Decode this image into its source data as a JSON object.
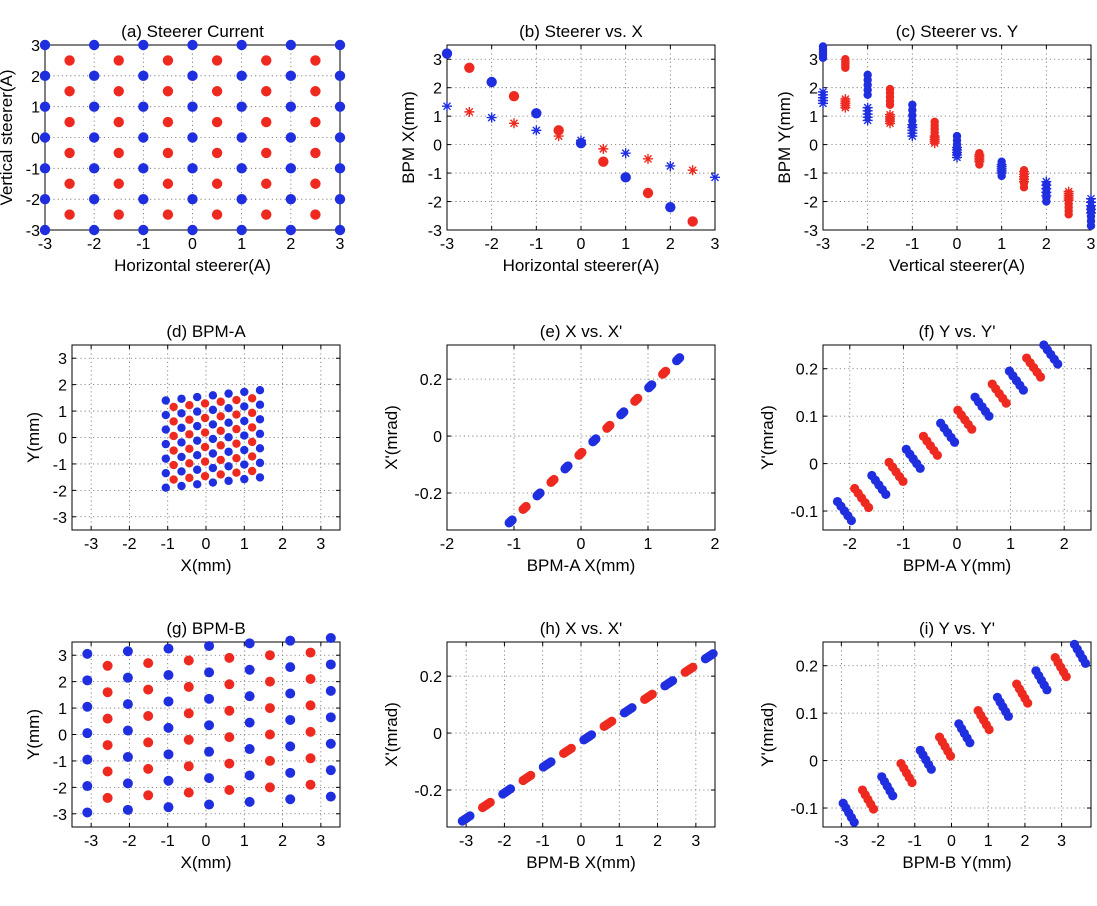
{
  "colors": {
    "red": "#ee2a20",
    "blue": "#1f2fe0"
  },
  "chart_data": [
    {
      "panel": "a",
      "type": "scatter",
      "title": "(a) Steerer Current",
      "xlabel": "Horizontal steerer(A)",
      "ylabel": "Vertical steerer(A)",
      "xlim": [
        -3,
        3
      ],
      "ylim": [
        -3,
        3
      ],
      "xticks": [
        -3,
        -2,
        -1,
        0,
        1,
        2,
        3
      ],
      "yticks": [
        -3,
        -2,
        -1,
        0,
        1,
        2,
        3
      ],
      "series": [
        {
          "color": "red",
          "marker": "dot",
          "grid": {
            "x": [
              -2.5,
              -1.5,
              -0.5,
              0.5,
              1.5,
              2.5
            ],
            "y": [
              -2.5,
              -1.5,
              -0.5,
              0.5,
              1.5,
              2.5
            ]
          }
        },
        {
          "color": "blue",
          "marker": "dot",
          "grid": {
            "x": [
              -3,
              -2,
              -1,
              0,
              1,
              2,
              3
            ],
            "y": [
              -3,
              -2,
              -1,
              0,
              1,
              2,
              3
            ]
          }
        }
      ]
    },
    {
      "panel": "b",
      "type": "scatter",
      "title": "(b) Steerer vs. X",
      "xlabel": "Horizontal steerer(A)",
      "ylabel": "BPM X(mm)",
      "xlim": [
        -3,
        3
      ],
      "ylim": [
        -3,
        3.5
      ],
      "xticks": [
        -3,
        -2,
        -1,
        0,
        1,
        2,
        3
      ],
      "yticks": [
        -3,
        -2,
        -1,
        0,
        1,
        2,
        3
      ],
      "series": [
        {
          "color": "blue",
          "marker": "dot",
          "x": [
            -3,
            -2,
            -1,
            0,
            1,
            2
          ],
          "y": [
            3.2,
            2.2,
            1.1,
            0.05,
            -1.15,
            -2.2
          ]
        },
        {
          "color": "red",
          "marker": "dot",
          "x": [
            -2.5,
            -1.5,
            -0.5,
            0.5,
            1.5,
            2.5
          ],
          "y": [
            2.7,
            1.7,
            0.5,
            -0.6,
            -1.7,
            -2.7
          ]
        },
        {
          "color": "blue",
          "marker": "star",
          "x": [
            -3,
            -2,
            -1,
            0,
            1,
            2,
            3
          ],
          "y": [
            1.35,
            0.95,
            0.5,
            0.15,
            -0.3,
            -0.75,
            -1.15
          ]
        },
        {
          "color": "red",
          "marker": "star",
          "x": [
            -2.5,
            -1.5,
            -0.5,
            0.5,
            1.5,
            2.5
          ],
          "y": [
            1.15,
            0.75,
            0.3,
            -0.15,
            -0.5,
            -0.9
          ]
        }
      ]
    },
    {
      "panel": "c",
      "type": "scatter",
      "title": "(c) Steerer vs. Y",
      "xlabel": "Vertical steerer(A)",
      "ylabel": "BPM Y(mm)",
      "xlim": [
        -3,
        3
      ],
      "ylim": [
        -3,
        3.5
      ],
      "xticks": [
        -3,
        -2,
        -1,
        0,
        1,
        2,
        3
      ],
      "yticks": [
        -3,
        -2,
        -1,
        0,
        1,
        2,
        3
      ],
      "columns": [
        {
          "x": -3,
          "color": "blue",
          "dot": [
            3.05,
            3.45
          ],
          "star": [
            1.45,
            1.85
          ]
        },
        {
          "x": -2.5,
          "color": "red",
          "dot": [
            2.7,
            3.0
          ],
          "star": [
            1.3,
            1.6
          ]
        },
        {
          "x": -2,
          "color": "blue",
          "dot": [
            1.75,
            2.45
          ],
          "star": [
            0.85,
            1.3
          ]
        },
        {
          "x": -1.5,
          "color": "red",
          "dot": [
            1.4,
            1.95
          ],
          "star": [
            0.75,
            1.05
          ]
        },
        {
          "x": -1,
          "color": "blue",
          "dot": [
            0.65,
            1.4
          ],
          "star": [
            0.3,
            0.7
          ]
        },
        {
          "x": -0.5,
          "color": "red",
          "dot": [
            0.3,
            0.8
          ],
          "star": [
            0.05,
            0.3
          ]
        },
        {
          "x": 0,
          "color": "blue",
          "dot": [
            -0.3,
            0.3
          ],
          "star": [
            -0.45,
            -0.1
          ]
        },
        {
          "x": 0.5,
          "color": "red",
          "dot": [
            -0.7,
            -0.3
          ],
          "star": [
            -0.6,
            -0.35
          ]
        },
        {
          "x": 1,
          "color": "blue",
          "dot": [
            -1.1,
            -0.6
          ],
          "star": [
            -1.0,
            -0.7
          ]
        },
        {
          "x": 1.5,
          "color": "red",
          "dot": [
            -1.5,
            -0.9
          ],
          "star": [
            -1.3,
            -0.95
          ]
        },
        {
          "x": 2,
          "color": "blue",
          "dot": [
            -2.0,
            -1.4
          ],
          "star": [
            -1.8,
            -1.3
          ]
        },
        {
          "x": 2.5,
          "color": "red",
          "dot": [
            -2.45,
            -1.95
          ],
          "star": [
            -1.95,
            -1.65
          ]
        },
        {
          "x": 3,
          "color": "blue",
          "dot": [
            -2.85,
            -2.2
          ],
          "star": [
            -2.4,
            -1.9
          ]
        }
      ]
    },
    {
      "panel": "d",
      "type": "scatter",
      "title": "(d) BPM-A",
      "xlabel": "X(mm)",
      "ylabel": "Y(mm)",
      "xlim": [
        -3.5,
        3.5
      ],
      "ylim": [
        -3.5,
        3.5
      ],
      "xticks": [
        -3,
        -2,
        -1,
        0,
        1,
        2,
        3
      ],
      "yticks": [
        -3,
        -2,
        -1,
        0,
        1,
        2,
        3
      ],
      "lattice": {
        "x_start": -1.05,
        "x_step": 0.41,
        "y_start": -1.9,
        "y_step": 0.55,
        "shear": 0.065,
        "blue_cols": 7,
        "blue_rows": 7,
        "red_cols": 6,
        "red_rows": 6
      }
    },
    {
      "panel": "e",
      "type": "scatter",
      "title": "(e) X vs. X'",
      "xlabel": "BPM-A X(mm)",
      "ylabel": "X'(mrad)",
      "xlim": [
        -2,
        2
      ],
      "ylim": [
        -0.33,
        0.32
      ],
      "xticks": [
        -2,
        -1,
        0,
        1,
        2
      ],
      "yticks": [
        -0.2,
        0,
        0.2
      ],
      "line": {
        "x0": -1.05,
        "y0": -0.3,
        "x1": 1.45,
        "y1": 0.27
      },
      "clusters": {
        "count": 13,
        "spread": 0.045
      }
    },
    {
      "panel": "f",
      "type": "scatter",
      "title": "(f) Y vs. Y'",
      "xlabel": "BPM-A Y(mm)",
      "ylabel": "Y'(mrad)",
      "xlim": [
        -2.5,
        2.5
      ],
      "ylim": [
        -0.14,
        0.25
      ],
      "xticks": [
        -2,
        -1,
        0,
        1,
        2
      ],
      "yticks": [
        -0.1,
        0,
        0.1,
        0.2
      ],
      "line": {
        "x0": -2.1,
        "y0": -0.1,
        "x1": 1.75,
        "y1": 0.23
      },
      "clusters": {
        "count": 13,
        "spread": 0.26,
        "tilt": -0.02
      }
    },
    {
      "panel": "g",
      "type": "scatter",
      "title": "(g) BPM-B",
      "xlabel": "X(mm)",
      "ylabel": "Y(mm)",
      "xlim": [
        -3.5,
        3.5
      ],
      "ylim": [
        -3.5,
        3.5
      ],
      "xticks": [
        -3,
        -2,
        -1,
        0,
        1,
        2,
        3
      ],
      "yticks": [
        -3,
        -2,
        -1,
        0,
        1,
        2,
        3
      ],
      "lattice": {
        "x_start": -3.1,
        "x_step": 1.06,
        "y_start": -2.95,
        "y_step": 1.0,
        "shear": 0.1,
        "blue_cols": 7,
        "blue_rows": 7,
        "red_cols": 6,
        "red_rows": 6
      }
    },
    {
      "panel": "h",
      "type": "scatter",
      "title": "(h) X vs. X'",
      "xlabel": "BPM-B X(mm)",
      "ylabel": "X'(mrad)",
      "xlim": [
        -3.5,
        3.5
      ],
      "ylim": [
        -0.33,
        0.32
      ],
      "xticks": [
        -3,
        -2,
        -1,
        0,
        1,
        2,
        3
      ],
      "yticks": [
        -0.2,
        0,
        0.2
      ],
      "line": {
        "x0": -3.0,
        "y0": -0.3,
        "x1": 3.35,
        "y1": 0.27
      },
      "clusters": {
        "count": 13,
        "spread": 0.2
      }
    },
    {
      "panel": "i",
      "type": "scatter",
      "title": "(i) Y vs. Y'",
      "xlabel": "BPM-B Y(mm)",
      "ylabel": "Y'(mrad)",
      "xlim": [
        -3.5,
        3.8
      ],
      "ylim": [
        -0.14,
        0.25
      ],
      "xticks": [
        -3,
        -2,
        -1,
        0,
        1,
        2,
        3
      ],
      "yticks": [
        -0.1,
        0,
        0.1,
        0.2
      ],
      "line": {
        "x0": -2.8,
        "y0": -0.11,
        "x1": 3.5,
        "y1": 0.225
      },
      "clusters": {
        "count": 13,
        "spread": 0.3,
        "tilt": -0.02
      }
    }
  ]
}
